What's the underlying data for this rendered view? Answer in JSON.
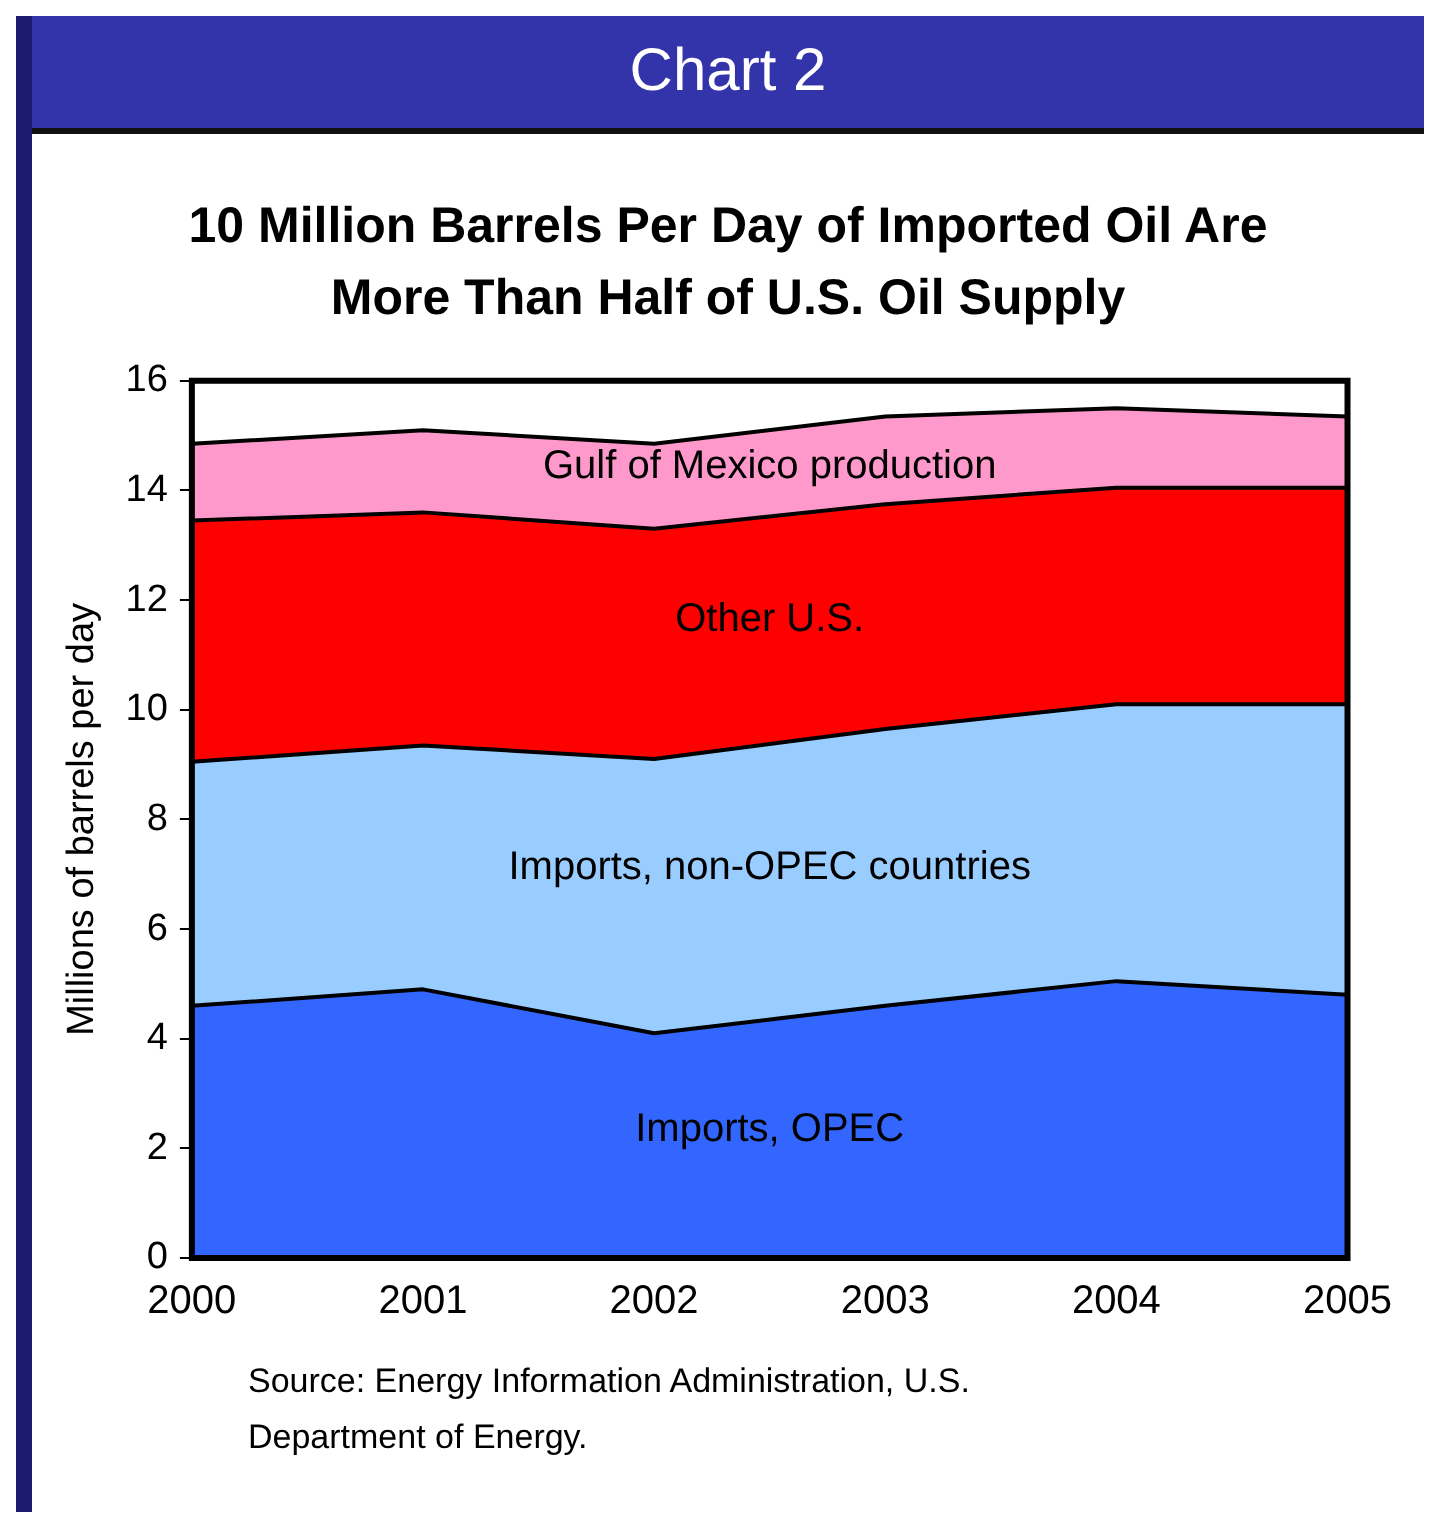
{
  "chart_data": {
    "type": "area",
    "title": "10 Million Barrels Per Day of Imported Oil Are More Than Half of U.S. Oil Supply",
    "ylabel": "Millions of barrels per day",
    "annotations": [
      "Chart 2",
      "Source: Energy Information Administration, U.S. Department of Energy."
    ],
    "x": [
      2000,
      2001,
      2002,
      2003,
      2004,
      2005
    ],
    "xlim": [
      2000,
      2005
    ],
    "xticks": [
      2000,
      2001,
      2002,
      2003,
      2004,
      2005
    ],
    "ylim": [
      0,
      16
    ],
    "yticks": [
      0,
      2,
      4,
      6,
      8,
      10,
      12,
      14,
      16
    ],
    "stacked": true,
    "grid": false,
    "legend": false,
    "marker": "none",
    "series": [
      {
        "name": "Imports, OPEC",
        "color": "#3366ff",
        "values": [
          4.6,
          4.9,
          4.1,
          4.6,
          5.05,
          4.8
        ]
      },
      {
        "name": "Imports, non-OPEC countries",
        "color": "#99ccff",
        "values": [
          4.45,
          4.45,
          5.0,
          5.05,
          5.05,
          5.3
        ]
      },
      {
        "name": "Other U.S.",
        "color": "#ff0000",
        "values": [
          4.4,
          4.25,
          4.2,
          4.1,
          3.95,
          3.95
        ]
      },
      {
        "name": "Gulf of Mexico production",
        "color": "#ff99cc",
        "values": [
          1.4,
          1.5,
          1.55,
          1.6,
          1.45,
          1.3
        ]
      }
    ]
  }
}
